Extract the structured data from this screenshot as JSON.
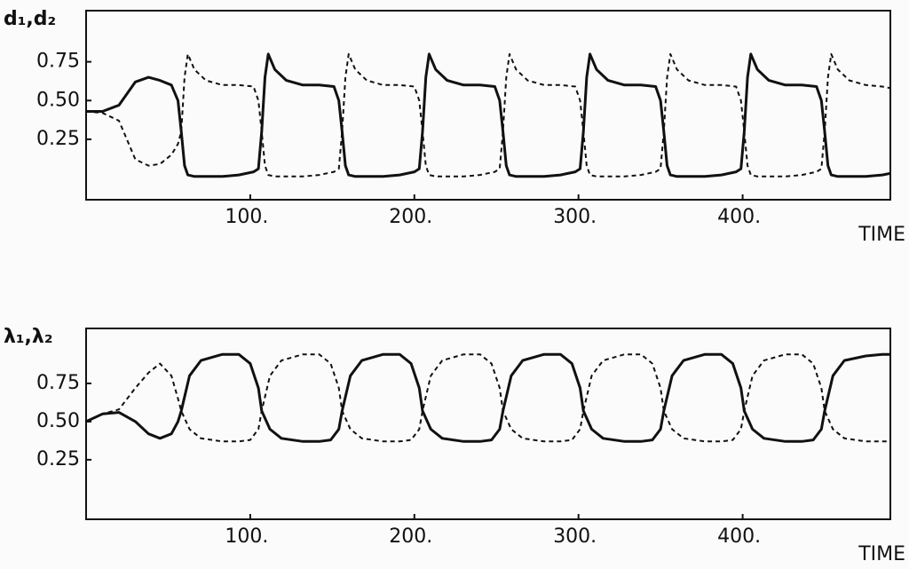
{
  "chart_data": [
    {
      "type": "line",
      "ylabel": "d₁,d₂",
      "xlabel": "TIME",
      "xlim": [
        0,
        490
      ],
      "ylim": [
        -0.14,
        1.08
      ],
      "xticks": [
        {
          "value": 100,
          "label": "100."
        },
        {
          "value": 200,
          "label": "200."
        },
        {
          "value": 300,
          "label": "300."
        },
        {
          "value": 400,
          "label": "400."
        }
      ],
      "yticks": [
        {
          "value": 0.25,
          "label": "0.25"
        },
        {
          "value": 0.5,
          "label": "0.50"
        },
        {
          "value": 0.75,
          "label": "0.75"
        }
      ],
      "grid": false,
      "x": [
        0,
        10,
        20,
        30,
        38,
        45,
        52,
        56,
        58,
        60,
        62,
        66,
        73,
        83,
        93,
        102,
        105,
        107,
        109,
        111,
        115,
        122,
        132,
        142,
        151,
        154,
        156,
        158,
        160,
        164,
        171,
        181,
        191,
        200,
        203,
        205,
        207,
        209,
        213,
        220,
        230,
        240,
        249,
        252,
        254,
        256,
        258,
        262,
        269,
        279,
        289,
        298,
        301,
        303,
        305,
        307,
        311,
        318,
        328,
        338,
        347,
        350,
        352,
        354,
        356,
        360,
        367,
        377,
        387,
        396,
        399,
        401,
        403,
        405,
        409,
        416,
        426,
        436,
        445,
        448,
        450,
        452,
        454,
        458,
        465,
        475,
        485,
        490
      ],
      "series": [
        {
          "color": "#111111",
          "style": "solid",
          "values": [
            0.43,
            0.43,
            0.47,
            0.62,
            0.65,
            0.63,
            0.6,
            0.5,
            0.3,
            0.08,
            0.02,
            0.01,
            0.01,
            0.01,
            0.02,
            0.04,
            0.06,
            0.3,
            0.65,
            0.8,
            0.7,
            0.63,
            0.6,
            0.6,
            0.59,
            0.5,
            0.3,
            0.08,
            0.02,
            0.01,
            0.01,
            0.01,
            0.02,
            0.04,
            0.06,
            0.3,
            0.65,
            0.8,
            0.7,
            0.63,
            0.6,
            0.6,
            0.59,
            0.5,
            0.3,
            0.08,
            0.02,
            0.01,
            0.01,
            0.01,
            0.02,
            0.04,
            0.06,
            0.3,
            0.65,
            0.8,
            0.7,
            0.63,
            0.6,
            0.6,
            0.59,
            0.5,
            0.3,
            0.08,
            0.02,
            0.01,
            0.01,
            0.01,
            0.02,
            0.04,
            0.06,
            0.3,
            0.65,
            0.8,
            0.7,
            0.63,
            0.6,
            0.6,
            0.59,
            0.5,
            0.3,
            0.08,
            0.02,
            0.01,
            0.01,
            0.01,
            0.02,
            0.03
          ]
        },
        {
          "color": "#111111",
          "style": "dashed",
          "values": [
            0.43,
            0.42,
            0.37,
            0.12,
            0.08,
            0.09,
            0.15,
            0.22,
            0.3,
            0.65,
            0.8,
            0.7,
            0.63,
            0.6,
            0.6,
            0.59,
            0.5,
            0.3,
            0.08,
            0.02,
            0.01,
            0.01,
            0.01,
            0.02,
            0.04,
            0.06,
            0.3,
            0.65,
            0.8,
            0.7,
            0.63,
            0.6,
            0.6,
            0.59,
            0.5,
            0.3,
            0.08,
            0.02,
            0.01,
            0.01,
            0.01,
            0.02,
            0.04,
            0.06,
            0.3,
            0.65,
            0.8,
            0.7,
            0.63,
            0.6,
            0.6,
            0.59,
            0.5,
            0.3,
            0.08,
            0.02,
            0.01,
            0.01,
            0.01,
            0.02,
            0.04,
            0.06,
            0.3,
            0.65,
            0.8,
            0.7,
            0.63,
            0.6,
            0.6,
            0.59,
            0.5,
            0.3,
            0.08,
            0.02,
            0.01,
            0.01,
            0.01,
            0.02,
            0.04,
            0.06,
            0.3,
            0.65,
            0.8,
            0.7,
            0.63,
            0.6,
            0.59,
            0.58
          ]
        }
      ]
    },
    {
      "type": "line",
      "ylabel": "λ₁,λ₂",
      "xlabel": "TIME",
      "xlim": [
        0,
        490
      ],
      "ylim": [
        -0.14,
        1.11
      ],
      "xticks": [
        {
          "value": 100,
          "label": "100."
        },
        {
          "value": 200,
          "label": "200."
        },
        {
          "value": 300,
          "label": "300."
        },
        {
          "value": 400,
          "label": "400."
        }
      ],
      "yticks": [
        {
          "value": 0.25,
          "label": "0.25"
        },
        {
          "value": 0.5,
          "label": "0.50"
        },
        {
          "value": 0.75,
          "label": "0.75"
        }
      ],
      "grid": false,
      "x": [
        0,
        10,
        20,
        30,
        38,
        45,
        52,
        56,
        58,
        63,
        70,
        83,
        93,
        100,
        105,
        107,
        112,
        119,
        132,
        142,
        149,
        154,
        156,
        161,
        168,
        181,
        191,
        198,
        203,
        205,
        210,
        217,
        230,
        240,
        247,
        252,
        254,
        259,
        266,
        279,
        289,
        296,
        301,
        303,
        308,
        315,
        328,
        338,
        345,
        350,
        352,
        357,
        364,
        377,
        387,
        394,
        399,
        401,
        406,
        413,
        426,
        436,
        443,
        448,
        450,
        455,
        462,
        475,
        485,
        490
      ],
      "series": [
        {
          "color": "#111111",
          "style": "solid",
          "values": [
            0.5,
            0.55,
            0.56,
            0.5,
            0.42,
            0.39,
            0.42,
            0.5,
            0.57,
            0.8,
            0.9,
            0.94,
            0.94,
            0.88,
            0.72,
            0.57,
            0.45,
            0.39,
            0.37,
            0.37,
            0.38,
            0.45,
            0.57,
            0.8,
            0.9,
            0.94,
            0.94,
            0.88,
            0.72,
            0.57,
            0.45,
            0.39,
            0.37,
            0.37,
            0.38,
            0.45,
            0.57,
            0.8,
            0.9,
            0.94,
            0.94,
            0.88,
            0.72,
            0.57,
            0.45,
            0.39,
            0.37,
            0.37,
            0.38,
            0.45,
            0.57,
            0.8,
            0.9,
            0.94,
            0.94,
            0.88,
            0.72,
            0.57,
            0.45,
            0.39,
            0.37,
            0.37,
            0.38,
            0.45,
            0.57,
            0.8,
            0.9,
            0.93,
            0.94,
            0.94
          ]
        },
        {
          "color": "#111111",
          "style": "dashed",
          "values": [
            0.5,
            0.55,
            0.58,
            0.72,
            0.82,
            0.88,
            0.8,
            0.65,
            0.57,
            0.45,
            0.39,
            0.37,
            0.37,
            0.38,
            0.45,
            0.57,
            0.8,
            0.9,
            0.94,
            0.94,
            0.88,
            0.72,
            0.57,
            0.45,
            0.39,
            0.37,
            0.37,
            0.38,
            0.45,
            0.57,
            0.8,
            0.9,
            0.94,
            0.94,
            0.88,
            0.72,
            0.57,
            0.45,
            0.39,
            0.37,
            0.37,
            0.38,
            0.45,
            0.57,
            0.8,
            0.9,
            0.94,
            0.94,
            0.88,
            0.72,
            0.57,
            0.45,
            0.39,
            0.37,
            0.37,
            0.38,
            0.45,
            0.57,
            0.8,
            0.9,
            0.94,
            0.94,
            0.88,
            0.72,
            0.57,
            0.45,
            0.39,
            0.37,
            0.37,
            0.37
          ]
        }
      ]
    }
  ]
}
